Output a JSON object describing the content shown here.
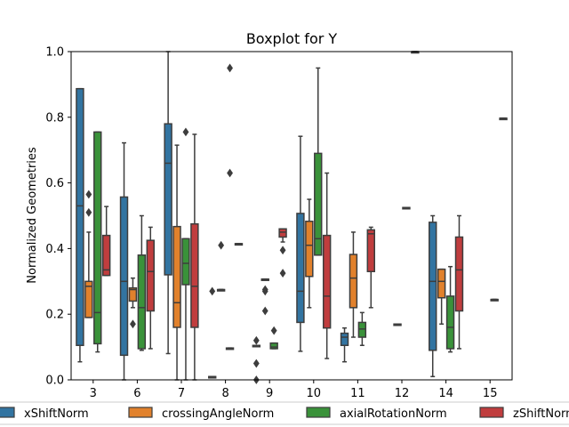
{
  "chart_data": {
    "type": "boxplot",
    "title": "Boxplot for Y",
    "xlabel": "",
    "ylabel": "Normalized Geometries",
    "ylim": [
      0.0,
      1.0
    ],
    "yticks": [
      0.0,
      0.2,
      0.4,
      0.6,
      0.8,
      1.0
    ],
    "ytick_labels": [
      "0.0",
      "0.2",
      "0.4",
      "0.6",
      "0.8",
      "1.0"
    ],
    "categories": [
      "3",
      "6",
      "7",
      "8",
      "9",
      "10",
      "11",
      "12",
      "14",
      "15"
    ],
    "grid": false,
    "legend_position": "bottom",
    "series": [
      {
        "name": "xShiftNorm",
        "color": "#3274a1",
        "boxes": [
          {
            "q1": 0.105,
            "median": 0.53,
            "q3": 0.887,
            "whislo": 0.055,
            "whishi": 0.887,
            "fliers": []
          },
          {
            "q1": 0.075,
            "median": 0.3,
            "q3": 0.557,
            "whislo": 0.0,
            "whishi": 0.722,
            "fliers": []
          },
          {
            "q1": 0.32,
            "median": 0.66,
            "q3": 0.78,
            "whislo": 0.08,
            "whishi": 1.0,
            "fliers": []
          },
          {
            "q1": 0.01,
            "median": 0.01,
            "q3": 0.01,
            "whislo": 0.01,
            "whishi": 0.01,
            "fliers": [
              0.27
            ]
          },
          {
            "q1": 0.105,
            "median": 0.105,
            "q3": 0.105,
            "whislo": 0.105,
            "whishi": 0.105,
            "fliers": [
              0.12,
              0.05,
              0.0
            ]
          },
          {
            "q1": 0.175,
            "median": 0.27,
            "q3": 0.507,
            "whislo": 0.087,
            "whishi": 0.742,
            "fliers": []
          },
          {
            "q1": 0.105,
            "median": 0.13,
            "q3": 0.142,
            "whislo": 0.055,
            "whishi": 0.158,
            "fliers": []
          },
          null,
          {
            "q1": 0.09,
            "median": 0.3,
            "q3": 0.48,
            "whislo": 0.01,
            "whishi": 0.5,
            "fliers": []
          },
          null
        ]
      },
      {
        "name": "crossingAngleNorm",
        "color": "#e1812c",
        "boxes": [
          {
            "q1": 0.19,
            "median": 0.285,
            "q3": 0.3,
            "whislo": 0.19,
            "whishi": 0.45,
            "fliers": [
              0.565,
              0.51
            ]
          },
          {
            "q1": 0.24,
            "median": 0.275,
            "q3": 0.28,
            "whislo": 0.22,
            "whishi": 0.31,
            "fliers": [
              0.17
            ]
          },
          {
            "q1": 0.16,
            "median": 0.235,
            "q3": 0.467,
            "whislo": 0.0,
            "whishi": 0.715,
            "fliers": []
          },
          {
            "q1": 0.275,
            "median": 0.275,
            "q3": 0.275,
            "whislo": 0.275,
            "whishi": 0.275,
            "fliers": [
              0.41
            ]
          },
          {
            "q1": 0.307,
            "median": 0.307,
            "q3": 0.307,
            "whislo": 0.307,
            "whishi": 0.307,
            "fliers": [
              0.27,
              0.275,
              0.21
            ]
          },
          {
            "q1": 0.315,
            "median": 0.41,
            "q3": 0.483,
            "whislo": 0.22,
            "whishi": 0.55,
            "fliers": []
          },
          {
            "q1": 0.22,
            "median": 0.31,
            "q3": 0.382,
            "whislo": 0.13,
            "whishi": 0.45,
            "fliers": []
          },
          {
            "q1": 0.17,
            "median": 0.17,
            "q3": 0.17,
            "whislo": 0.17,
            "whishi": 0.17,
            "fliers": []
          },
          {
            "q1": 0.25,
            "median": 0.3,
            "q3": 0.337,
            "whislo": 0.17,
            "whishi": 0.337,
            "fliers": []
          },
          null
        ]
      },
      {
        "name": "axialRotationNorm",
        "color": "#3a923a",
        "boxes": [
          {
            "q1": 0.11,
            "median": 0.205,
            "q3": 0.755,
            "whislo": 0.085,
            "whishi": 0.755,
            "fliers": []
          },
          {
            "q1": 0.095,
            "median": 0.22,
            "q3": 0.38,
            "whislo": 0.09,
            "whishi": 0.5,
            "fliers": []
          },
          {
            "q1": 0.29,
            "median": 0.355,
            "q3": 0.43,
            "whislo": 0.0,
            "whishi": 0.43,
            "fliers": [
              0.755
            ]
          },
          {
            "q1": 0.097,
            "median": 0.097,
            "q3": 0.097,
            "whislo": 0.097,
            "whishi": 0.097,
            "fliers": [
              0.95,
              0.63
            ]
          },
          {
            "q1": 0.095,
            "median": 0.1,
            "q3": 0.112,
            "whislo": 0.095,
            "whishi": 0.112,
            "fliers": [
              0.15
            ]
          },
          {
            "q1": 0.38,
            "median": 0.43,
            "q3": 0.69,
            "whislo": 0.38,
            "whishi": 0.95,
            "fliers": []
          },
          {
            "q1": 0.13,
            "median": 0.155,
            "q3": 0.175,
            "whislo": 0.105,
            "whishi": 0.205,
            "fliers": []
          },
          {
            "q1": 0.525,
            "median": 0.525,
            "q3": 0.525,
            "whislo": 0.525,
            "whishi": 0.525,
            "fliers": []
          },
          {
            "q1": 0.095,
            "median": 0.16,
            "q3": 0.255,
            "whislo": 0.085,
            "whishi": 0.345,
            "fliers": []
          },
          {
            "q1": 0.245,
            "median": 0.245,
            "q3": 0.245,
            "whislo": 0.245,
            "whishi": 0.245,
            "fliers": []
          }
        ]
      },
      {
        "name": "zShiftNorm",
        "color": "#c03d3e",
        "boxes": [
          {
            "q1": 0.318,
            "median": 0.335,
            "q3": 0.44,
            "whislo": 0.318,
            "whishi": 0.528,
            "fliers": []
          },
          {
            "q1": 0.21,
            "median": 0.33,
            "q3": 0.425,
            "whislo": 0.095,
            "whishi": 0.465,
            "fliers": []
          },
          {
            "q1": 0.16,
            "median": 0.285,
            "q3": 0.475,
            "whislo": 0.0,
            "whishi": 0.748,
            "fliers": []
          },
          {
            "q1": 0.415,
            "median": 0.415,
            "q3": 0.415,
            "whislo": 0.415,
            "whishi": 0.415,
            "fliers": []
          },
          {
            "q1": 0.435,
            "median": 0.45,
            "q3": 0.46,
            "whislo": 0.42,
            "whishi": 0.46,
            "fliers": [
              0.395,
              0.325
            ]
          },
          {
            "q1": 0.158,
            "median": 0.255,
            "q3": 0.44,
            "whislo": 0.065,
            "whishi": 0.63,
            "fliers": []
          },
          {
            "q1": 0.33,
            "median": 0.445,
            "q3": 0.457,
            "whislo": 0.22,
            "whishi": 0.465,
            "fliers": []
          },
          {
            "q1": 1.0,
            "median": 1.0,
            "q3": 1.0,
            "whislo": 1.0,
            "whishi": 1.0,
            "fliers": []
          },
          {
            "q1": 0.21,
            "median": 0.335,
            "q3": 0.435,
            "whislo": 0.095,
            "whishi": 0.5,
            "fliers": []
          },
          {
            "q1": 0.797,
            "median": 0.797,
            "q3": 0.797,
            "whislo": 0.797,
            "whishi": 0.797,
            "fliers": []
          }
        ]
      }
    ]
  }
}
